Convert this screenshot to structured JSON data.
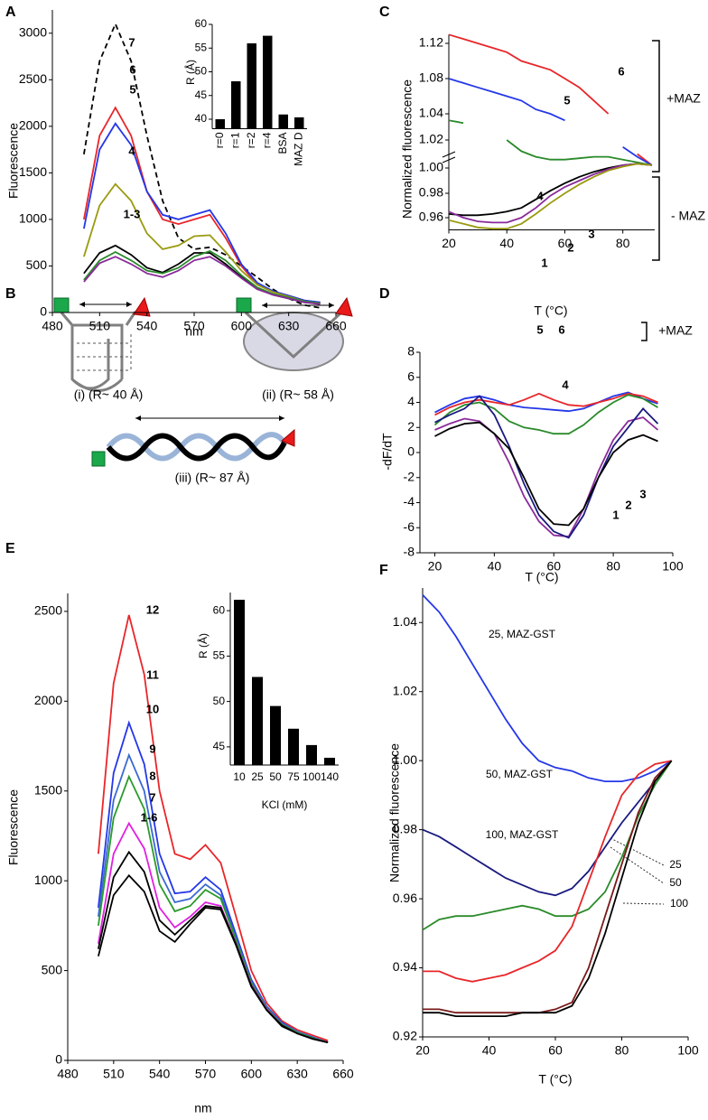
{
  "chart_data": [
    {
      "type": "line",
      "panel": "A",
      "xlabel": "nm",
      "ylabel": "Fluorescence",
      "x": [
        500,
        510,
        520,
        530,
        540,
        550,
        560,
        570,
        580,
        590,
        600,
        610,
        620,
        630,
        640,
        650
      ],
      "xlim": [
        480,
        660
      ],
      "xticks": [
        480,
        510,
        540,
        570,
        600,
        630,
        660
      ],
      "ylim": [
        0,
        3250
      ],
      "yticks": [
        0,
        500,
        1000,
        1500,
        2000,
        2500,
        3000
      ],
      "series": [
        {
          "name": "7",
          "color": "#000000",
          "style": "dashed",
          "values": [
            1700,
            2700,
            3100,
            2700,
            1900,
            1200,
            800,
            680,
            700,
            620,
            500,
            380,
            250,
            150,
            80,
            50
          ]
        },
        {
          "name": "6",
          "color": "#e8262a",
          "values": [
            1000,
            1900,
            2200,
            1900,
            1300,
            1000,
            950,
            1000,
            1050,
            800,
            500,
            300,
            220,
            180,
            130,
            100
          ]
        },
        {
          "name": "5",
          "color": "#2437e8",
          "values": [
            900,
            1750,
            2030,
            1800,
            1300,
            1050,
            1000,
            1050,
            1100,
            850,
            520,
            320,
            230,
            180,
            130,
            110
          ]
        },
        {
          "name": "4",
          "color": "#9a9a10",
          "values": [
            600,
            1150,
            1380,
            1200,
            850,
            680,
            720,
            820,
            830,
            650,
            450,
            300,
            220,
            170,
            120,
            100
          ]
        },
        {
          "name": "1-3",
          "color": "#000000",
          "values": [
            420,
            640,
            720,
            620,
            480,
            430,
            520,
            640,
            640,
            520,
            380,
            260,
            190,
            150,
            110,
            100
          ]
        },
        {
          "color": "#2a8a2a",
          "values": [
            350,
            560,
            650,
            560,
            450,
            420,
            480,
            600,
            660,
            560,
            400,
            270,
            200,
            160,
            120,
            100
          ]
        },
        {
          "color": "#8a2a9a",
          "values": [
            330,
            530,
            600,
            520,
            420,
            380,
            450,
            560,
            600,
            500,
            370,
            250,
            190,
            150,
            110,
            90
          ]
        }
      ]
    },
    {
      "type": "bar",
      "ylabel": "R (Å)",
      "color": "#000000",
      "categories": [
        "r=0",
        "r=1",
        "r=2",
        "r=4",
        "BSA",
        "MAZ D"
      ],
      "values": [
        40,
        48,
        56,
        57.6,
        41,
        40.4
      ],
      "ylim": [
        38,
        60
      ],
      "yticks": [
        40,
        45,
        50,
        55,
        60
      ]
    },
    {
      "type": "line",
      "panel": "C",
      "xlabel": "T (°C)",
      "ylabel": "Normalized fluorescence",
      "y_axis_break": true,
      "annotations": [
        "+MAZ",
        "- MAZ"
      ],
      "x": [
        20,
        25,
        30,
        35,
        40,
        45,
        50,
        55,
        60,
        65,
        70,
        75,
        80,
        85,
        90
      ],
      "xlim": [
        20,
        91
      ],
      "xticks": [
        20,
        40,
        60,
        80
      ],
      "ylim": [
        0.95,
        1.13
      ],
      "yticks": [
        0.96,
        0.98,
        {
          "value": 1,
          "label": "1.00"
        },
        1.02,
        1.04,
        1.08,
        1.12
      ],
      "series": [
        {
          "name": "6",
          "color": "#e8262a",
          "values": [
            1.13,
            1.125,
            1.12,
            1.115,
            1.11,
            1.1,
            1.095,
            1.09,
            1.08,
            1.07,
            1.055,
            1.04,
            null,
            1.01,
            1.002
          ]
        },
        {
          "name": "5",
          "color": "#2437e8",
          "values": [
            1.08,
            1.075,
            1.07,
            1.065,
            1.06,
            1.055,
            1.045,
            1.04,
            1.035,
            null,
            null,
            null,
            1.015,
            1.008,
            1.002
          ]
        },
        {
          "name": "4",
          "color": "#2a8a2a",
          "values": [
            1.035,
            1.033,
            null,
            null,
            1.02,
            1.012,
            1.008,
            1.006,
            1.006,
            1.007,
            1.008,
            1.008,
            1.006,
            1.004,
            1.002
          ]
        },
        {
          "name": "3",
          "color": "#000000",
          "values": [
            0.963,
            0.962,
            0.962,
            0.963,
            0.965,
            0.968,
            0.975,
            0.982,
            0.988,
            0.993,
            0.997,
            1,
            1.002,
            1.003,
            1.002
          ]
        },
        {
          "name": "2",
          "color": "#8a2a9a",
          "values": [
            0.965,
            0.96,
            0.957,
            0.956,
            0.956,
            0.96,
            0.968,
            0.978,
            0.985,
            0.99,
            0.995,
            0.999,
            1.002,
            1.003,
            1.002
          ]
        },
        {
          "name": "1",
          "color": "#9a9a10",
          "values": [
            0.958,
            0.955,
            0.952,
            0.951,
            0.951,
            0.955,
            0.963,
            0.972,
            0.98,
            0.987,
            0.993,
            0.998,
            1.001,
            1.003,
            1.002
          ]
        }
      ]
    },
    {
      "type": "line",
      "panel": "D",
      "xlabel": "T (°C)",
      "ylabel": "-dF/dT",
      "annotations": [
        "+MAZ"
      ],
      "x": [
        20,
        25,
        30,
        35,
        40,
        45,
        50,
        55,
        60,
        65,
        70,
        75,
        80,
        85,
        90,
        95
      ],
      "xlim": [
        15,
        100
      ],
      "xticks": [
        20,
        40,
        60,
        80,
        100
      ],
      "ylim": [
        -8,
        8
      ],
      "yticks": [
        -8,
        -6,
        -4,
        -2,
        0,
        2,
        4,
        6,
        8
      ],
      "series": [
        {
          "name": "5",
          "color": "#2437e8",
          "values": [
            3.2,
            3.8,
            4.3,
            4.5,
            4.2,
            3.8,
            3.6,
            3.5,
            3.4,
            3.3,
            3.5,
            4,
            4.5,
            4.8,
            4.3,
            3.9
          ]
        },
        {
          "name": "6",
          "color": "#e8262a",
          "values": [
            3,
            3.6,
            4,
            4.2,
            4,
            3.8,
            4.2,
            4.7,
            4.2,
            3.8,
            3.7,
            4,
            4.3,
            4.7,
            4.5,
            4
          ]
        },
        {
          "name": "4",
          "color": "#2a8a2a",
          "values": [
            2.2,
            3.2,
            3.8,
            4,
            3.5,
            2.5,
            2,
            1.8,
            1.5,
            1.5,
            2.2,
            3.2,
            4,
            4.6,
            4.3,
            3.6
          ]
        },
        {
          "name": "2",
          "color": "#8a2a9a",
          "values": [
            1.8,
            2.3,
            2.7,
            2.5,
            1.5,
            -0.8,
            -3.5,
            -5.5,
            -6.6,
            -6.7,
            -4.5,
            -1.5,
            1,
            2.5,
            2.8,
            1.8
          ]
        },
        {
          "name": "1",
          "color": "#1a1a80",
          "values": [
            2.4,
            3,
            3.5,
            4.5,
            3,
            0.5,
            -2.5,
            -5,
            -6.3,
            -6.8,
            -5,
            -2,
            0.5,
            2,
            3.5,
            2.3
          ]
        },
        {
          "name": "3",
          "color": "#000000",
          "values": [
            1.3,
            1.9,
            2.3,
            2.4,
            1.5,
            0.3,
            -2,
            -4.5,
            -5.7,
            -5.8,
            -4.5,
            -2,
            0,
            1,
            1.4,
            0.9
          ]
        }
      ]
    },
    {
      "type": "line",
      "panel": "E",
      "xlabel": "nm",
      "ylabel": "Fluorescence",
      "x": [
        500,
        510,
        520,
        530,
        540,
        550,
        560,
        570,
        580,
        590,
        600,
        610,
        620,
        630,
        640,
        650
      ],
      "xlim": [
        480,
        660
      ],
      "xticks": [
        480,
        510,
        540,
        570,
        600,
        630,
        660
      ],
      "ylim": [
        0,
        2600
      ],
      "yticks": [
        0,
        500,
        1000,
        1500,
        2000,
        2500
      ],
      "series": [
        {
          "name": "12",
          "color": "#e8262a",
          "values": [
            1150,
            2100,
            2480,
            2150,
            1500,
            1150,
            1120,
            1200,
            1100,
            800,
            500,
            320,
            220,
            170,
            140,
            110
          ]
        },
        {
          "name": "11",
          "color": "#2437e8",
          "values": [
            850,
            1600,
            1880,
            1650,
            1150,
            930,
            940,
            1020,
            950,
            700,
            450,
            300,
            210,
            160,
            130,
            100
          ]
        },
        {
          "name": "10",
          "color": "#3a6ad0",
          "values": [
            800,
            1450,
            1700,
            1500,
            1050,
            880,
            900,
            980,
            920,
            680,
            440,
            295,
            205,
            160,
            125,
            100
          ]
        },
        {
          "name": "9",
          "color": "#2a9a2a",
          "values": [
            750,
            1350,
            1580,
            1400,
            980,
            830,
            860,
            950,
            900,
            670,
            430,
            290,
            200,
            155,
            125,
            100
          ]
        },
        {
          "name": "8",
          "color": "#e020e0",
          "values": [
            650,
            1150,
            1320,
            1180,
            850,
            740,
            800,
            880,
            860,
            650,
            420,
            285,
            195,
            150,
            120,
            100
          ]
        },
        {
          "name": "7",
          "color": "#000000",
          "values": [
            620,
            1020,
            1160,
            1050,
            780,
            700,
            780,
            860,
            850,
            645,
            415,
            280,
            195,
            150,
            120,
            100
          ]
        },
        {
          "name": "1-6",
          "color": "#000000",
          "values": [
            580,
            920,
            1030,
            940,
            720,
            660,
            760,
            850,
            840,
            640,
            410,
            280,
            190,
            150,
            120,
            100
          ]
        }
      ]
    },
    {
      "type": "bar",
      "xlabel": "KCl (mM)",
      "ylabel": "R (Å)",
      "color": "#000000",
      "categories": [
        "10",
        "25",
        "50",
        "75",
        "100",
        "140"
      ],
      "values": [
        61.2,
        52.7,
        49.5,
        47,
        45.2,
        43.8
      ],
      "ylim": [
        43,
        62
      ],
      "yticks": [
        45,
        50,
        55,
        60
      ]
    },
    {
      "type": "line",
      "panel": "F",
      "xlabel": "T (°C)",
      "ylabel": "Normalized fluorescence",
      "x": [
        20,
        25,
        30,
        35,
        40,
        45,
        50,
        55,
        60,
        65,
        70,
        75,
        80,
        85,
        90,
        95
      ],
      "xlim": [
        20,
        100
      ],
      "xticks": [
        20,
        40,
        60,
        80,
        100
      ],
      "ylim": [
        0.92,
        1.05
      ],
      "yticks": [
        0.92,
        0.94,
        0.96,
        0.98,
        {
          "value": 1,
          "label": "1.00"
        },
        1.02,
        1.04
      ],
      "series": [
        {
          "name": "25, MAZ-GST",
          "color": "#2437e8",
          "values": [
            1.048,
            1.043,
            1.036,
            1.028,
            1.02,
            1.012,
            1.005,
            1,
            0.998,
            0.997,
            0.995,
            0.994,
            0.994,
            0.995,
            0.997,
            1
          ]
        },
        {
          "name": "50, MAZ-GST",
          "color": "#1a1a80",
          "values": [
            0.98,
            0.978,
            0.975,
            0.972,
            0.969,
            0.966,
            0.964,
            0.962,
            0.961,
            0.963,
            0.968,
            0.975,
            0.982,
            0.988,
            0.994,
            1
          ]
        },
        {
          "name": "100, MAZ-GST",
          "color": "#2a8a2a",
          "values": [
            0.951,
            0.954,
            0.955,
            0.955,
            0.956,
            0.957,
            0.958,
            0.957,
            0.955,
            0.955,
            0.957,
            0.962,
            0.972,
            0.984,
            0.993,
            1
          ]
        },
        {
          "name": "25",
          "color": "#e8262a",
          "values": [
            0.939,
            0.939,
            0.937,
            0.936,
            0.937,
            0.938,
            0.94,
            0.942,
            0.945,
            0.952,
            0.965,
            0.978,
            0.99,
            0.996,
            0.999,
            1
          ]
        },
        {
          "name": "50",
          "color": "#7a1a1a",
          "values": [
            0.928,
            0.928,
            0.927,
            0.927,
            0.927,
            0.927,
            0.927,
            0.927,
            0.928,
            0.93,
            0.94,
            0.955,
            0.97,
            0.985,
            0.995,
            1
          ]
        },
        {
          "name": "100",
          "color": "#000000",
          "values": [
            0.927,
            0.927,
            0.926,
            0.926,
            0.926,
            0.926,
            0.927,
            0.927,
            0.927,
            0.929,
            0.937,
            0.95,
            0.966,
            0.982,
            0.994,
            1
          ]
        }
      ]
    }
  ],
  "diagram": {
    "panel": "B",
    "labels": [
      "(i) (R~ 40 Å)",
      "(ii) (R~ 58 Å)",
      "(iii) (R~ 87 Å)"
    ]
  }
}
